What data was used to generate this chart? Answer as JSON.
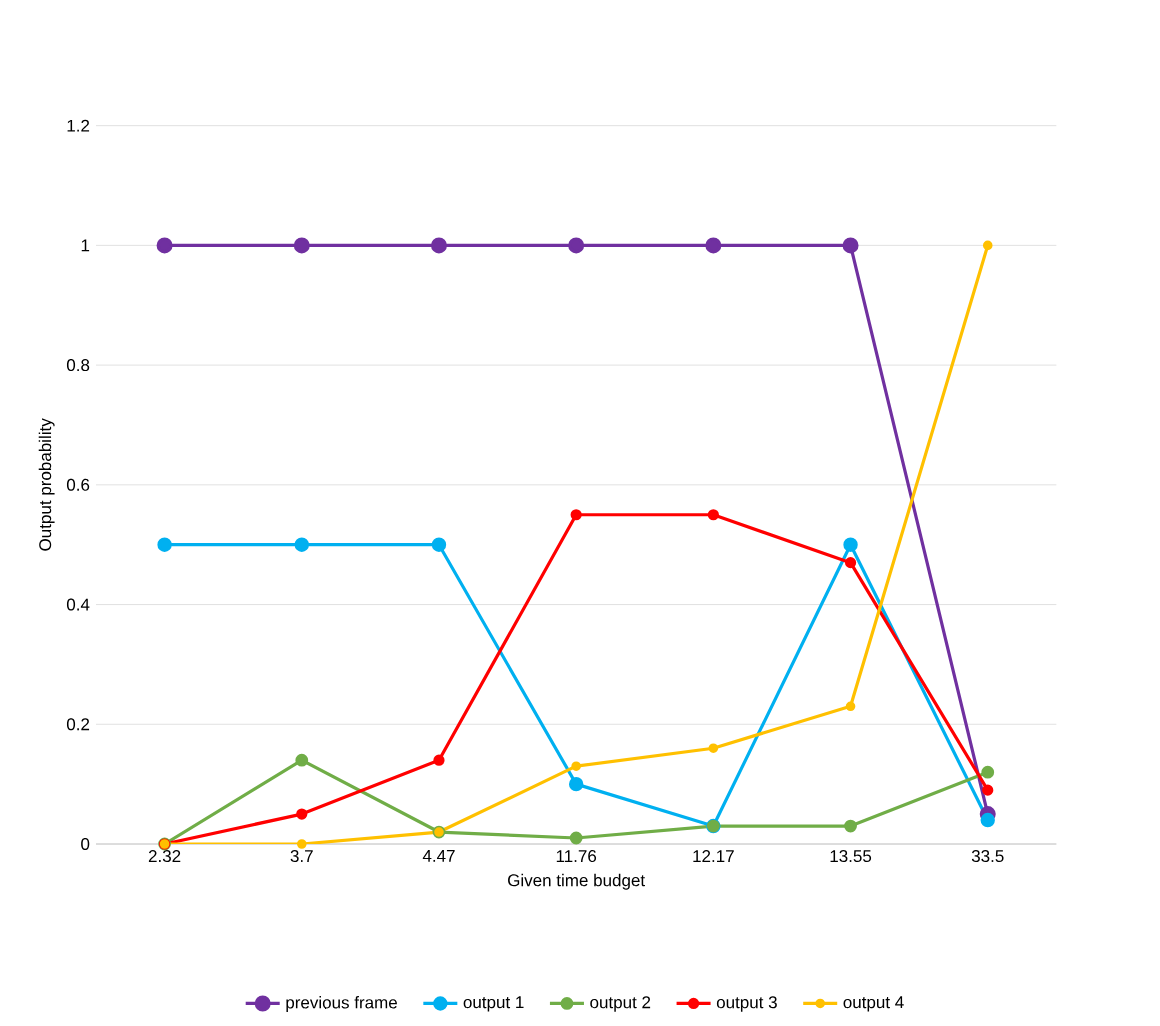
{
  "chart_data": {
    "type": "line",
    "xlabel": "Given time budget",
    "ylabel": "Output probability",
    "categories": [
      "2.32",
      "3.7",
      "4.47",
      "11.76",
      "12.17",
      "13.55",
      "33.5"
    ],
    "series": [
      {
        "name": "previous frame",
        "color": "#7030a0",
        "values": [
          1,
          1,
          1,
          1,
          1,
          1,
          0.05
        ]
      },
      {
        "name": "output 1",
        "color": "#00b0f0",
        "values": [
          0.5,
          0.5,
          0.5,
          0.1,
          0.03,
          0.5,
          0.04
        ]
      },
      {
        "name": "output 2",
        "color": "#70ad47",
        "values": [
          0,
          0.14,
          0.02,
          0.01,
          0.03,
          0.03,
          0.12
        ]
      },
      {
        "name": "output 3",
        "color": "#ff0000",
        "values": [
          0,
          0.05,
          0.14,
          0.55,
          0.55,
          0.47,
          0.09
        ]
      },
      {
        "name": "output 4",
        "color": "#ffc000",
        "values": [
          0,
          0,
          0.02,
          0.13,
          0.16,
          0.23,
          1
        ]
      }
    ],
    "ylim": [
      0,
      1.2
    ],
    "yticks": [
      0,
      0.2,
      0.4,
      0.6,
      0.8,
      1,
      1.2
    ],
    "grid": "y",
    "legend": "bottom",
    "marker": "circle",
    "line_style": "solid"
  }
}
